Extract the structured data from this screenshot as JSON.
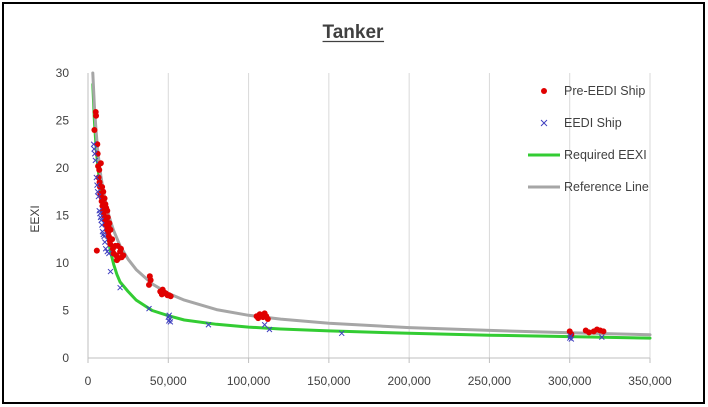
{
  "chart_data": {
    "type": "scatter",
    "title": "Tanker",
    "xlabel": "",
    "ylabel": "EEXI",
    "xlim": [
      0,
      350000
    ],
    "ylim": [
      0,
      30
    ],
    "x_ticks": [
      0,
      50000,
      100000,
      150000,
      200000,
      250000,
      300000,
      350000
    ],
    "x_tick_labels": [
      "0",
      "50,000",
      "100,000",
      "150,000",
      "200,000",
      "250,000",
      "300,000",
      "350,000"
    ],
    "y_ticks": [
      0,
      5,
      10,
      15,
      20,
      25,
      30
    ],
    "y_tick_labels": [
      "0",
      "5",
      "10",
      "15",
      "20",
      "25",
      "30"
    ],
    "grid": "vertical",
    "legend_position": "right",
    "series": [
      {
        "name": "Pre-EEDI Ship",
        "kind": "scatter",
        "marker": "dot",
        "color": "#e00000",
        "points": [
          [
            4000,
            24.0
          ],
          [
            4800,
            25.9
          ],
          [
            5000,
            25.5
          ],
          [
            5500,
            11.3
          ],
          [
            5800,
            22.5
          ],
          [
            6000,
            21.5
          ],
          [
            6300,
            20.2
          ],
          [
            6600,
            19.0
          ],
          [
            7000,
            19.8
          ],
          [
            7200,
            18.5
          ],
          [
            7500,
            18.0
          ],
          [
            7700,
            17.3
          ],
          [
            8000,
            20.5
          ],
          [
            8200,
            17.0
          ],
          [
            8500,
            16.5
          ],
          [
            8800,
            18.0
          ],
          [
            9000,
            16.0
          ],
          [
            9300,
            15.5
          ],
          [
            9500,
            17.5
          ],
          [
            9800,
            15.3
          ],
          [
            10000,
            15.0
          ],
          [
            10300,
            16.8
          ],
          [
            10500,
            14.5
          ],
          [
            10800,
            16.2
          ],
          [
            11000,
            14.0
          ],
          [
            11300,
            15.8
          ],
          [
            11500,
            14.3
          ],
          [
            11800,
            13.5
          ],
          [
            12000,
            15.5
          ],
          [
            12300,
            14.8
          ],
          [
            12500,
            13.2
          ],
          [
            12800,
            13.8
          ],
          [
            13000,
            12.8
          ],
          [
            13300,
            14.2
          ],
          [
            13500,
            12.4
          ],
          [
            13800,
            12.0
          ],
          [
            14000,
            13.5
          ],
          [
            15000,
            12.5
          ],
          [
            15500,
            11.5
          ],
          [
            16000,
            11.0
          ],
          [
            17000,
            11.8
          ],
          [
            17500,
            10.8
          ],
          [
            18000,
            10.3
          ],
          [
            18500,
            11.8
          ],
          [
            19000,
            10.5
          ],
          [
            20000,
            11.2
          ],
          [
            20500,
            11.5
          ],
          [
            21000,
            10.6
          ],
          [
            22000,
            10.8
          ],
          [
            38000,
            7.7
          ],
          [
            38500,
            8.6
          ],
          [
            39000,
            8.2
          ],
          [
            45000,
            7.0
          ],
          [
            46000,
            6.7
          ],
          [
            46500,
            7.2
          ],
          [
            47500,
            6.9
          ],
          [
            48500,
            6.8
          ],
          [
            49500,
            6.6
          ],
          [
            50500,
            6.6
          ],
          [
            51500,
            6.5
          ],
          [
            105000,
            4.4
          ],
          [
            106000,
            4.2
          ],
          [
            107000,
            4.6
          ],
          [
            108000,
            4.4
          ],
          [
            109000,
            4.3
          ],
          [
            110000,
            4.7
          ],
          [
            111000,
            4.4
          ],
          [
            112000,
            4.1
          ],
          [
            300000,
            2.8
          ],
          [
            301000,
            2.5
          ],
          [
            310000,
            2.9
          ],
          [
            312000,
            2.7
          ],
          [
            315000,
            2.8
          ],
          [
            317000,
            3.0
          ],
          [
            319000,
            2.9
          ],
          [
            321000,
            2.8
          ]
        ]
      },
      {
        "name": "EEDI Ship",
        "kind": "scatter",
        "marker": "x",
        "color": "#4040c0",
        "points": [
          [
            3500,
            22.5
          ],
          [
            3800,
            22.0
          ],
          [
            4200,
            21.5
          ],
          [
            4600,
            20.8
          ],
          [
            5200,
            19.0
          ],
          [
            5600,
            18.2
          ],
          [
            6000,
            17.5
          ],
          [
            6500,
            17.0
          ],
          [
            7000,
            15.5
          ],
          [
            7400,
            15.2
          ],
          [
            7800,
            14.8
          ],
          [
            8200,
            14.5
          ],
          [
            8600,
            14.0
          ],
          [
            9000,
            13.3
          ],
          [
            9500,
            13.0
          ],
          [
            10000,
            12.8
          ],
          [
            10500,
            12.2
          ],
          [
            11000,
            11.5
          ],
          [
            12000,
            11.2
          ],
          [
            13000,
            11.0
          ],
          [
            14000,
            9.1
          ],
          [
            20000,
            7.4
          ],
          [
            38000,
            5.2
          ],
          [
            50000,
            4.3
          ],
          [
            50300,
            3.9
          ],
          [
            50600,
            4.5
          ],
          [
            51000,
            4.1
          ],
          [
            51300,
            3.8
          ],
          [
            75000,
            3.5
          ],
          [
            110000,
            3.5
          ],
          [
            113000,
            3.0
          ],
          [
            158000,
            2.6
          ],
          [
            300000,
            2.1
          ],
          [
            300500,
            2.3
          ],
          [
            301000,
            2.0
          ],
          [
            320000,
            2.2
          ]
        ]
      },
      {
        "name": "Required EEXI",
        "kind": "line",
        "color": "#33cc33",
        "points": [
          [
            3000,
            28.8
          ],
          [
            4000,
            25.0
          ],
          [
            5000,
            22.3
          ],
          [
            6000,
            20.4
          ],
          [
            7000,
            18.9
          ],
          [
            8000,
            17.7
          ],
          [
            9000,
            16.7
          ],
          [
            10000,
            15.3
          ],
          [
            12000,
            13.0
          ],
          [
            14000,
            11.2
          ],
          [
            16000,
            9.85
          ],
          [
            18000,
            8.8
          ],
          [
            20000,
            8.0
          ],
          [
            25000,
            7.0
          ],
          [
            30000,
            6.1
          ],
          [
            40000,
            5.0
          ],
          [
            50000,
            4.45
          ],
          [
            60000,
            4.0
          ],
          [
            80000,
            3.55
          ],
          [
            100000,
            3.25
          ],
          [
            120000,
            3.05
          ],
          [
            150000,
            2.85
          ],
          [
            200000,
            2.6
          ],
          [
            250000,
            2.4
          ],
          [
            300000,
            2.25
          ],
          [
            350000,
            2.1
          ]
        ]
      },
      {
        "name": "Reference Line",
        "kind": "line",
        "color": "#a6a6a6",
        "points": [
          [
            3000,
            30.0
          ],
          [
            4000,
            26.5
          ],
          [
            5000,
            24.0
          ],
          [
            6000,
            22.0
          ],
          [
            7000,
            20.5
          ],
          [
            8000,
            19.2
          ],
          [
            9000,
            18.1
          ],
          [
            10000,
            17.2
          ],
          [
            12000,
            15.6
          ],
          [
            14000,
            14.4
          ],
          [
            16000,
            13.4
          ],
          [
            18000,
            12.6
          ],
          [
            20000,
            11.8
          ],
          [
            25000,
            10.4
          ],
          [
            30000,
            9.3
          ],
          [
            40000,
            7.8
          ],
          [
            50000,
            6.8
          ],
          [
            60000,
            6.1
          ],
          [
            80000,
            5.1
          ],
          [
            100000,
            4.5
          ],
          [
            120000,
            4.1
          ],
          [
            150000,
            3.65
          ],
          [
            200000,
            3.2
          ],
          [
            250000,
            2.9
          ],
          [
            300000,
            2.65
          ],
          [
            350000,
            2.45
          ]
        ]
      }
    ]
  }
}
